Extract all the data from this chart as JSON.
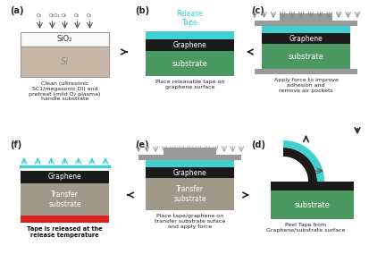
{
  "bg_color": "#ffffff",
  "colors": {
    "graphene": "#1a1a1a",
    "substrate_green": "#4a9960",
    "sio2_white": "#f8f8f8",
    "si_gray": "#c8b8a8",
    "tape_cyan": "#40d0d0",
    "press_gray": "#9a9a9a",
    "tape_red": "#dd2020",
    "transfer_gray": "#a09888",
    "arrow_dark": "#222222",
    "cyan_arrow": "#40d0d0"
  },
  "texts": {
    "a": "Clean (ultrasonic\nSC1/megasonic DI) and\npretreat (mild O₂ plasma)\nhandle substrate",
    "b": "Place releasable tape on\ngraphene surface",
    "c": "Apply force to improve\nadhesion and\nremove air pockets",
    "d": "Peel Tape from\nGraphene/substrate surface",
    "e": "Place tape/graphene on\ntransfer substrate suface\nand apply force",
    "f": "Tape is released at the\nrelease temperature"
  },
  "release_tape_label": "Release\nTape"
}
